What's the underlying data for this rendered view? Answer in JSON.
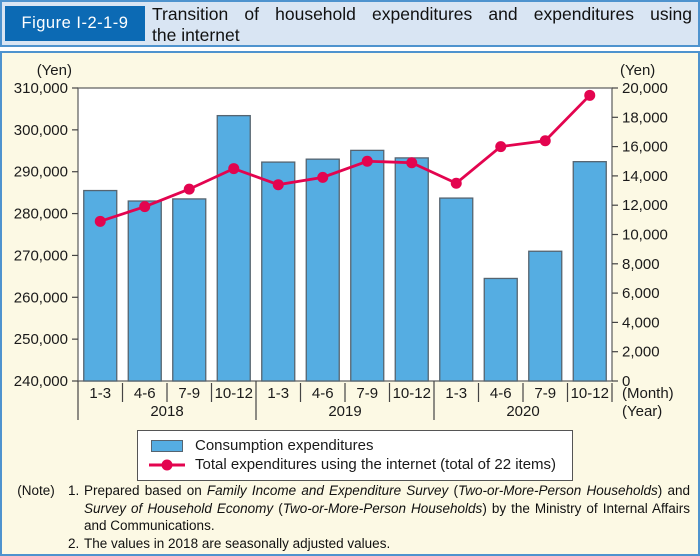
{
  "header": {
    "figure_label": "Figure I-2-1-9",
    "title_line1": "Transition of household expenditures and expenditures using",
    "title_line2": "the internet"
  },
  "colors": {
    "bar_fill": "#55ade2",
    "bar_stroke": "#566470",
    "line": "#e3044f",
    "badge_bg": "#0c6ab4",
    "header_bg": "#d9e5f3",
    "panel_border": "#4e93ce",
    "panel_bg": "#fcf9e4"
  },
  "chart_data": {
    "type": "bar",
    "categories": [
      "1-3",
      "4-6",
      "7-9",
      "10-12",
      "1-3",
      "4-6",
      "7-9",
      "10-12",
      "1-3",
      "4-6",
      "7-9",
      "10-12"
    ],
    "year_groups": [
      {
        "label": "2018",
        "span": 4
      },
      {
        "label": "2019",
        "span": 4
      },
      {
        "label": "2020",
        "span": 4
      }
    ],
    "series": [
      {
        "name": "Consumption expenditures",
        "type": "bar",
        "axis": "left",
        "values": [
          285500,
          283000,
          283500,
          303400,
          292300,
          293000,
          295100,
          293300,
          283700,
          264500,
          271000,
          292400
        ]
      },
      {
        "name": "Total expenditures using the internet (total of 22 items)",
        "type": "line",
        "axis": "right",
        "values": [
          10900,
          11900,
          13100,
          14500,
          13400,
          13900,
          15000,
          14900,
          13500,
          16000,
          16400,
          19500
        ]
      }
    ],
    "left_axis": {
      "label": "(Yen)",
      "min": 240000,
      "max": 310000,
      "step": 10000
    },
    "right_axis": {
      "label": "(Yen)",
      "min": 0,
      "max": 20000,
      "step": 2000
    },
    "x_axis": {
      "month_label": "(Month)",
      "year_label": "(Year)"
    },
    "grid": false,
    "legend_position": "bottom"
  },
  "legend": {
    "bar_label": "Consumption expenditures",
    "line_label": "Total expenditures using the internet (total of 22 items)"
  },
  "notes": {
    "label": "(Note)",
    "items": [
      {
        "number": "1.",
        "segments": [
          {
            "text": "Prepared based on ",
            "italic": false
          },
          {
            "text": "Family Income and Expenditure Survey",
            "italic": true
          },
          {
            "text": " (",
            "italic": false
          },
          {
            "text": "Two-or-More-Person Households",
            "italic": true
          },
          {
            "text": ") and ",
            "italic": false
          },
          {
            "text": "Survey of Household Economy",
            "italic": true
          },
          {
            "text": " (",
            "italic": false
          },
          {
            "text": "Two-or-More-Person Households",
            "italic": true
          },
          {
            "text": ") by the Ministry of Internal Affairs and Communications.",
            "italic": false
          }
        ]
      },
      {
        "number": "2.",
        "segments": [
          {
            "text": "The values in 2018 are seasonally adjusted values.",
            "italic": false
          }
        ]
      }
    ]
  }
}
